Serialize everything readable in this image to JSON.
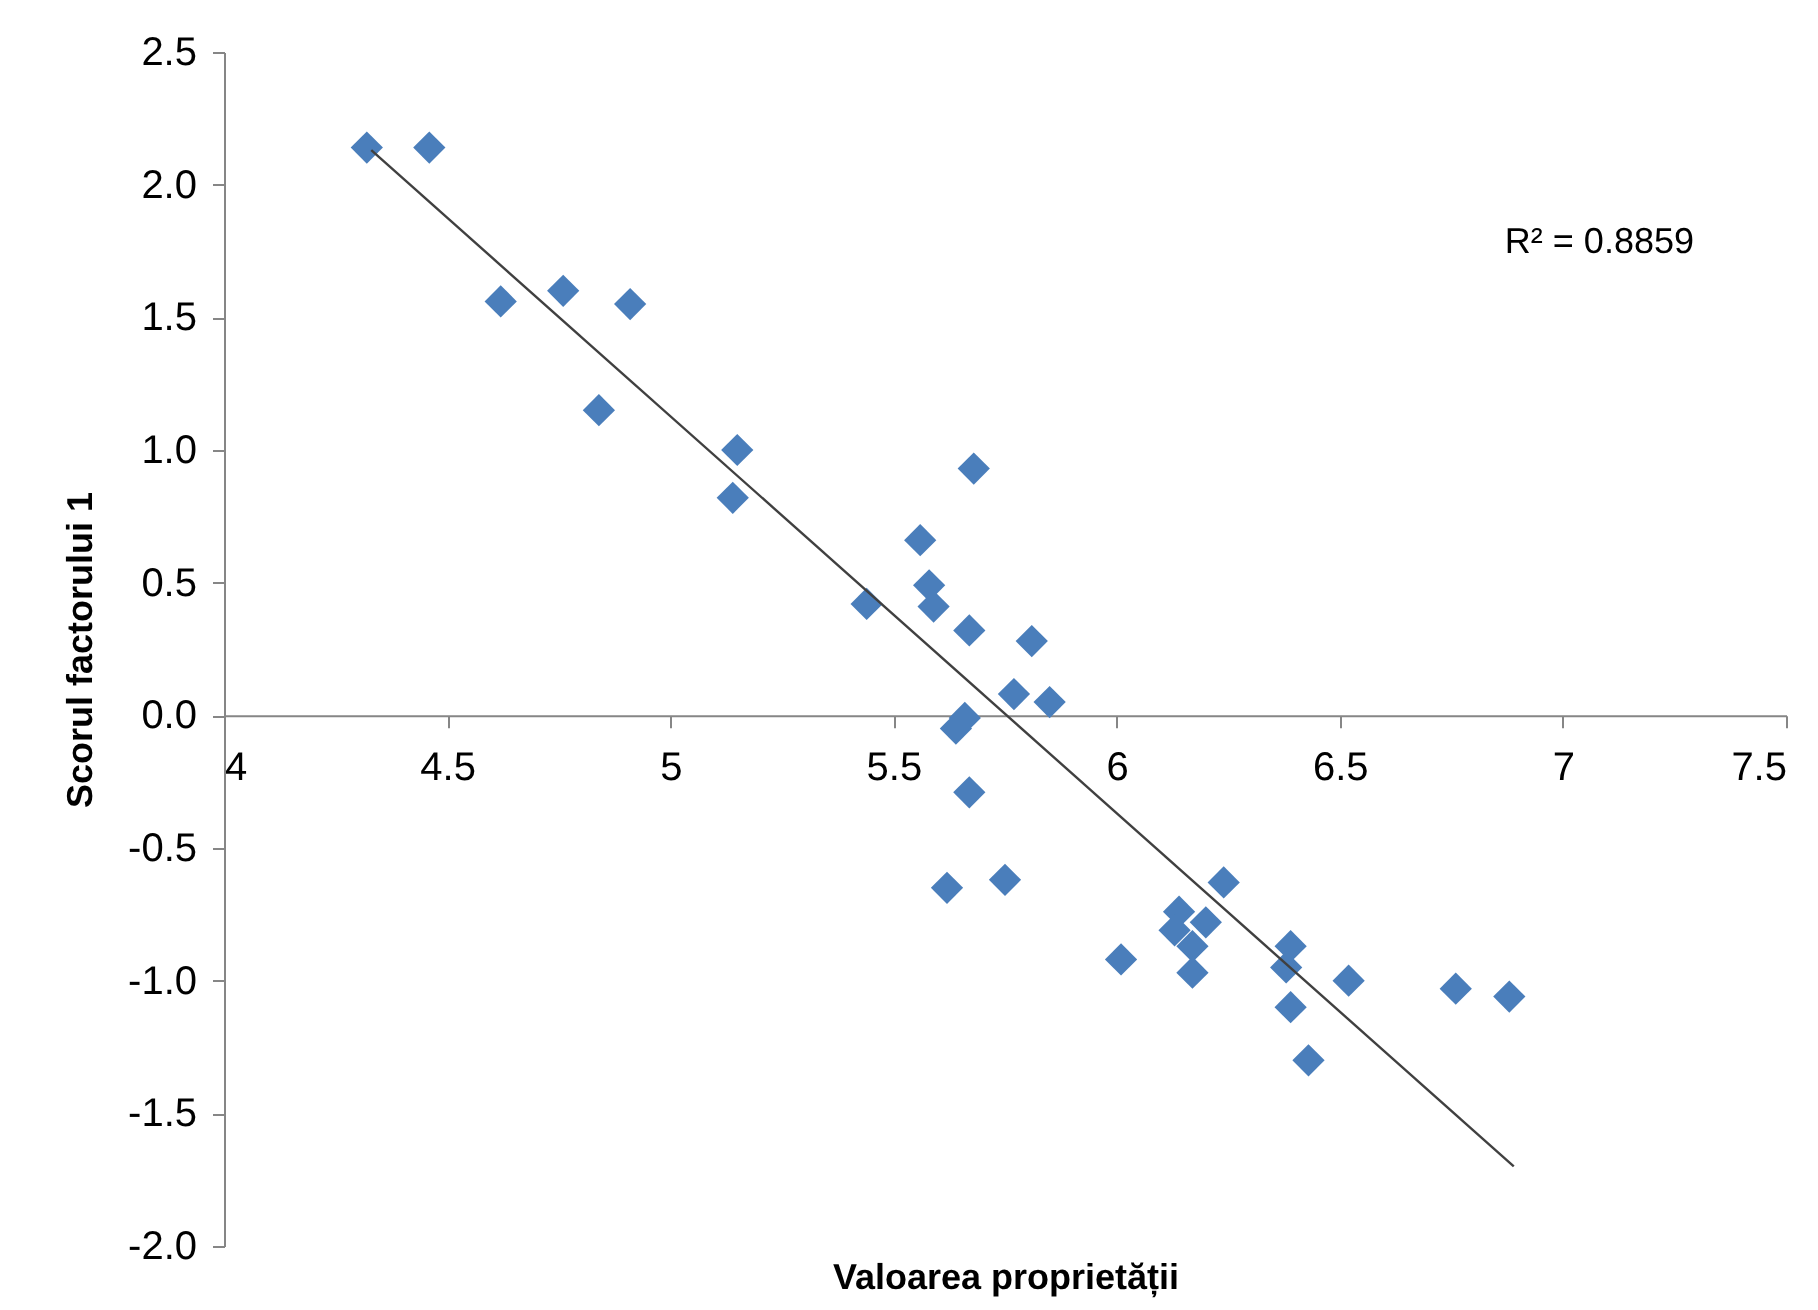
{
  "chart_data": {
    "type": "scatter",
    "xlabel": "Valoarea proprietății",
    "ylabel": "Scorul factorului 1",
    "xlim": [
      4,
      7.5
    ],
    "xticks": [
      4,
      4.5,
      5,
      5.5,
      6,
      6.5,
      7,
      7.5
    ],
    "ylim": [
      -2.0,
      2.5
    ],
    "yticks": [
      {
        "value": -2,
        "label": "-2.0"
      },
      {
        "value": -1.5,
        "label": "-1.5"
      },
      {
        "value": -1,
        "label": "-1.0"
      },
      {
        "value": -0.5,
        "label": "-0.5"
      },
      {
        "value": 0,
        "label": "0.0"
      },
      {
        "value": 0.5,
        "label": "0.5"
      },
      {
        "value": 1,
        "label": "1.0"
      },
      {
        "value": 1.5,
        "label": "1.5"
      },
      {
        "value": 2,
        "label": "2.0"
      },
      {
        "value": 2.5,
        "label": "2.5"
      }
    ],
    "grid": false,
    "marker": "diamond",
    "annotations": [
      "R² = 0.8859"
    ],
    "series": [
      {
        "color": "#4a7ebb",
        "x": [
          4.32,
          4.46,
          4.62,
          4.76,
          4.91,
          4.84,
          5.15,
          5.14,
          5.44,
          5.56,
          5.68,
          5.58,
          5.59,
          5.67,
          5.81,
          5.77,
          5.85,
          5.66,
          5.64,
          5.67,
          5.62,
          5.75,
          6.24,
          6.14,
          6.2,
          6.13,
          6.17,
          6.01,
          6.17,
          6.39,
          6.38,
          6.52,
          6.39,
          6.43,
          6.76,
          6.88
        ],
        "values": [
          2.14,
          2.14,
          1.56,
          1.6,
          1.55,
          1.15,
          1.0,
          0.82,
          0.42,
          0.66,
          0.93,
          0.49,
          0.41,
          0.32,
          0.28,
          0.08,
          0.05,
          -0.01,
          -0.05,
          -0.29,
          -0.65,
          -0.62,
          -0.63,
          -0.74,
          -0.78,
          -0.81,
          -0.87,
          -0.92,
          -0.97,
          -0.87,
          -0.95,
          -1.0,
          -1.1,
          -1.3,
          -1.03,
          -1.06
        ]
      },
      {
        "type": "line",
        "color": "#404040",
        "x": [
          4.33,
          6.89
        ],
        "values": [
          2.13,
          -1.7
        ],
        "line_style": "solid",
        "marker": "none"
      }
    ]
  }
}
